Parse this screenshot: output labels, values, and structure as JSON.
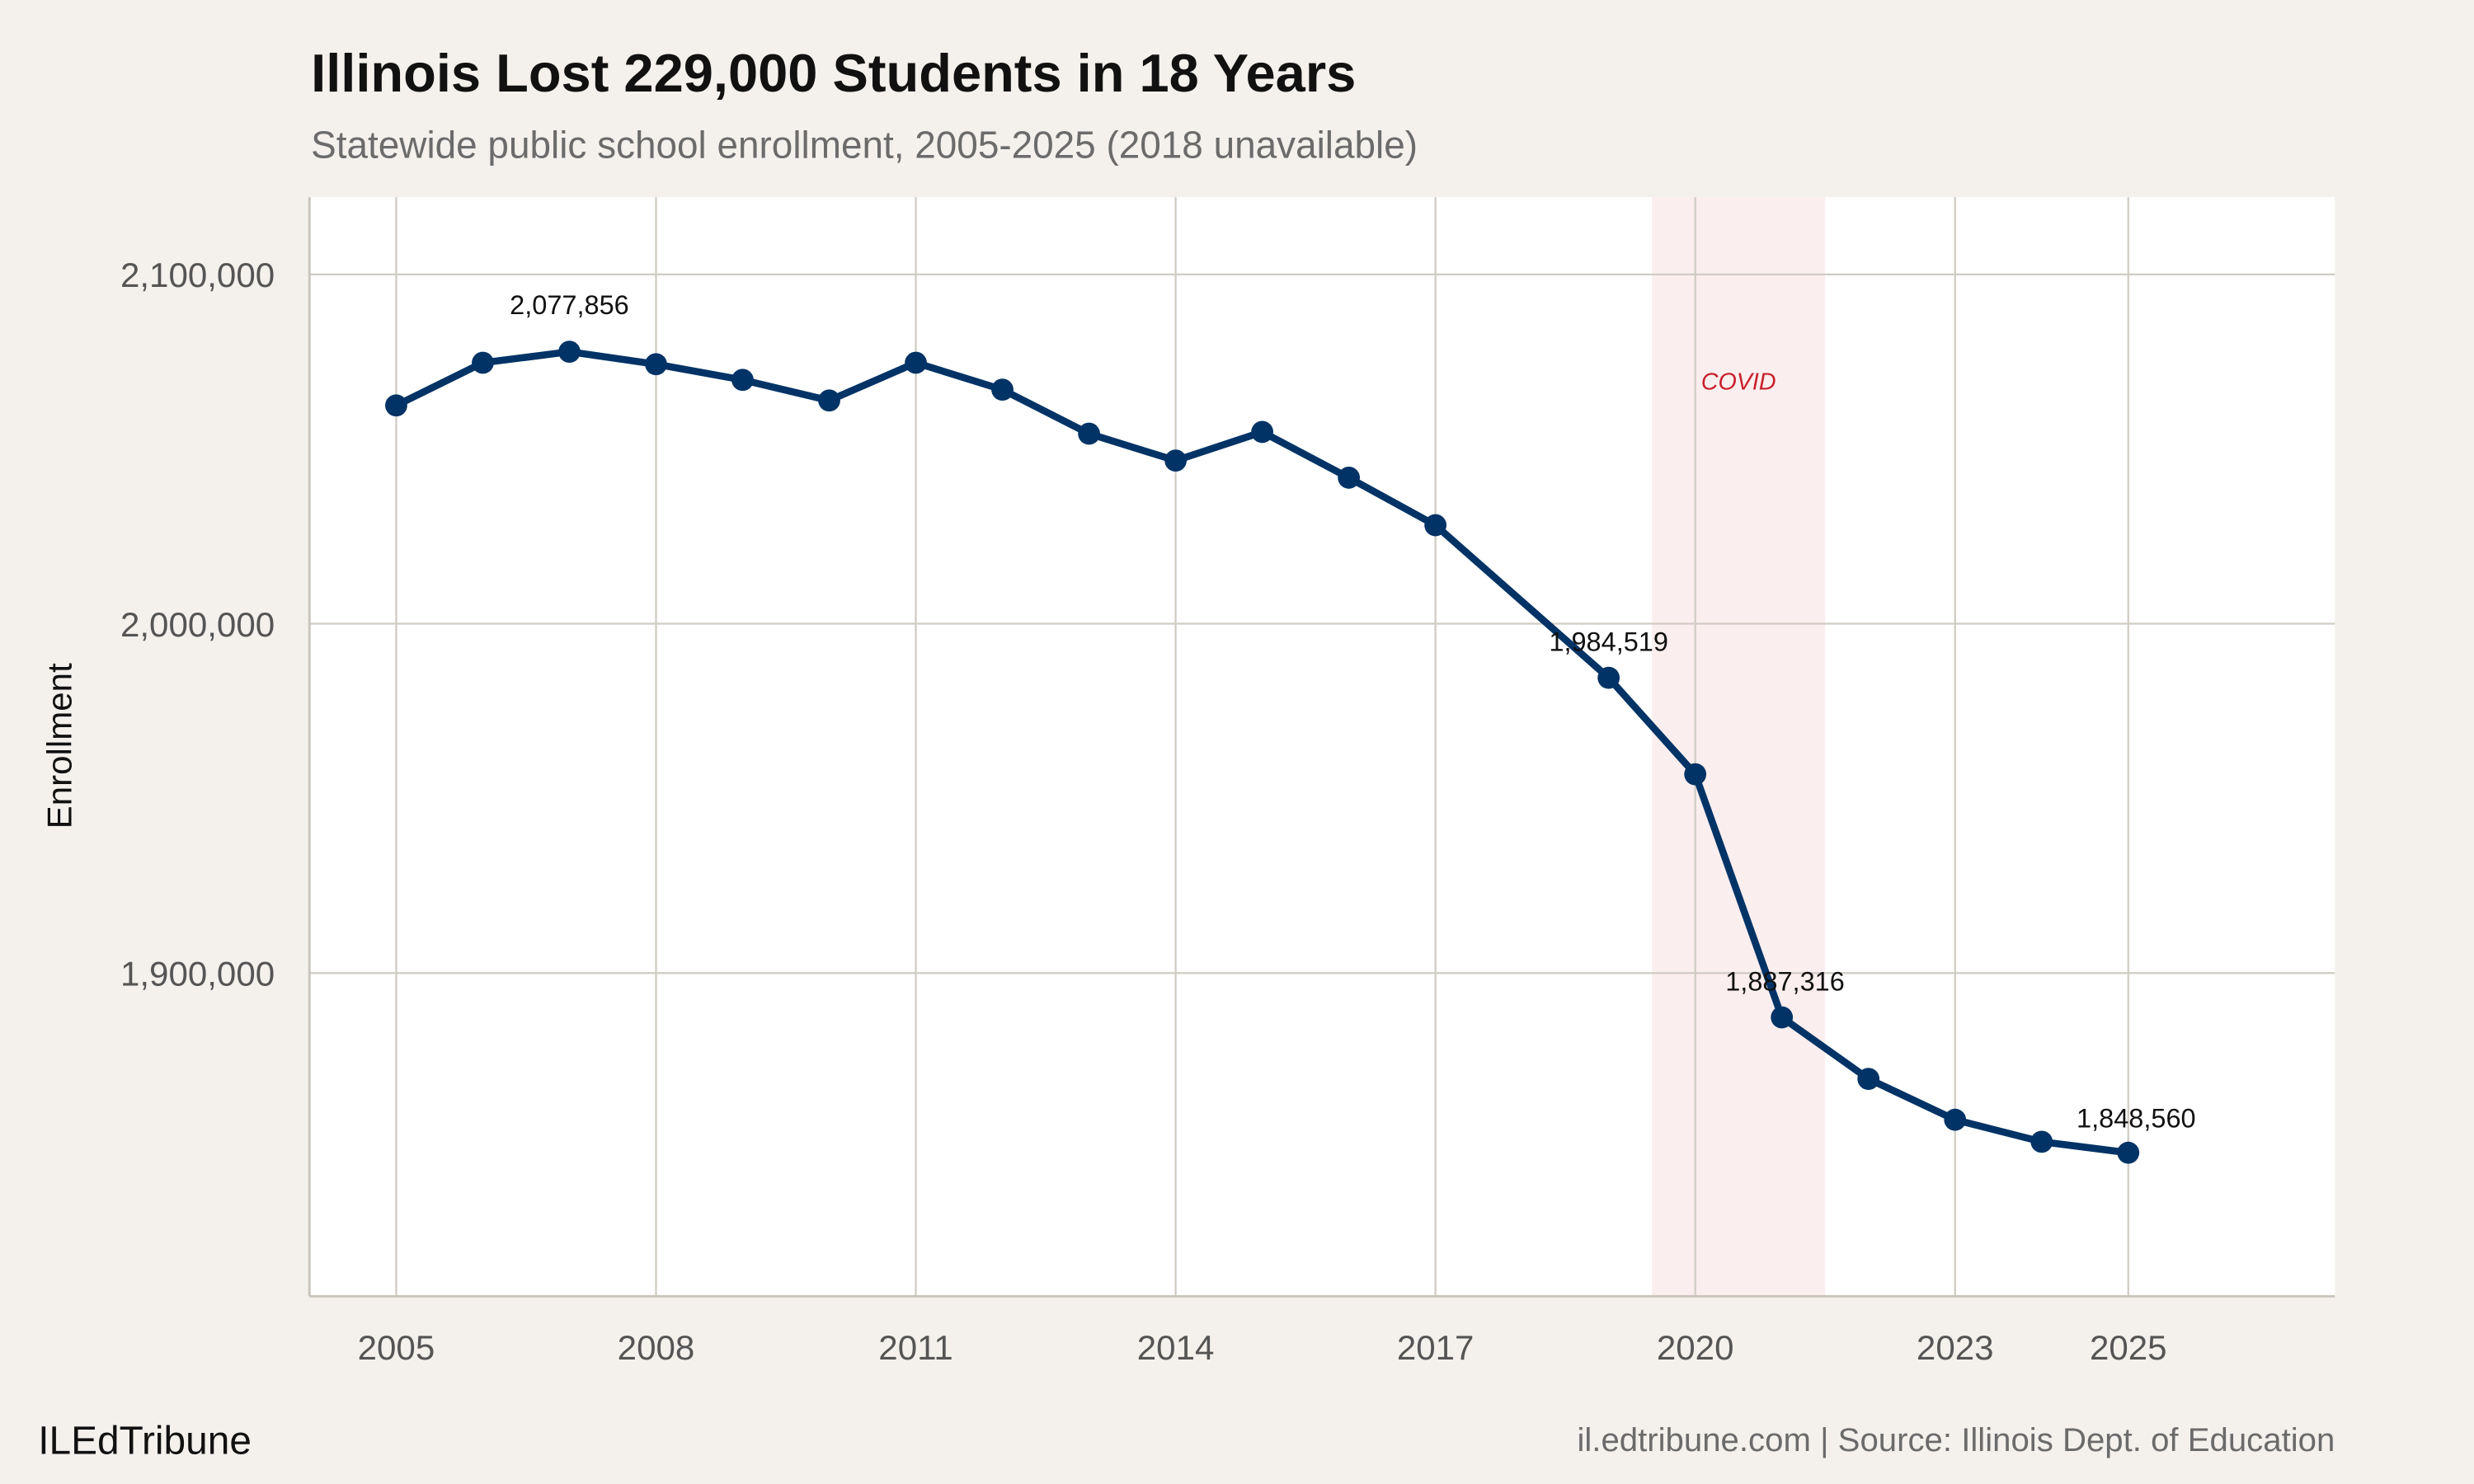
{
  "chart_data": {
    "type": "line",
    "title": "Illinois Lost 229,000 Students in 18 Years",
    "subtitle": "Statewide public school enrollment, 2005-2025 (2018 unavailable)",
    "xlabel": "",
    "ylabel": "Enrollment",
    "x": [
      2005,
      2006,
      2007,
      2008,
      2009,
      2010,
      2011,
      2012,
      2013,
      2014,
      2015,
      2016,
      2017,
      2019,
      2020,
      2021,
      2022,
      2023,
      2024,
      2025
    ],
    "values": [
      2062500,
      2074700,
      2077856,
      2074300,
      2069800,
      2063900,
      2074700,
      2067000,
      2054400,
      2046700,
      2054900,
      2041800,
      2028200,
      1984519,
      1956900,
      1887316,
      1869700,
      1858000,
      1851700,
      1848560
    ],
    "xlim": [
      2004,
      2027.3
    ],
    "ylim": [
      1815000,
      2122000
    ],
    "x_ticks": [
      "2005",
      "2008",
      "2011",
      "2014",
      "2017",
      "2020",
      "2023",
      "2025"
    ],
    "y_ticks": [
      "1,900,000",
      "2,000,000",
      "2,100,000"
    ],
    "y_tick_values": [
      1900000,
      2000000,
      2100000
    ],
    "data_labels": [
      {
        "x": 2007,
        "text": "2,077,856"
      },
      {
        "x": 2019,
        "text": "1,984,519"
      },
      {
        "x": 2021,
        "text": "1,887,316"
      },
      {
        "x": 2025,
        "text": "1,848,560"
      }
    ],
    "annotation": {
      "text": "COVID",
      "x_start": 2019.5,
      "x_end": 2021.5
    },
    "grid": true,
    "colors": {
      "line": "#023366",
      "band": "#fbeeee",
      "annotation": "#c8202e",
      "background": "#f4f1ec",
      "panel": "#ffffff",
      "grid": "#d0ccc4"
    }
  },
  "footer": {
    "brand": "ILEdTribune",
    "source": "il.edtribune.com | Source: Illinois Dept. of Education"
  }
}
